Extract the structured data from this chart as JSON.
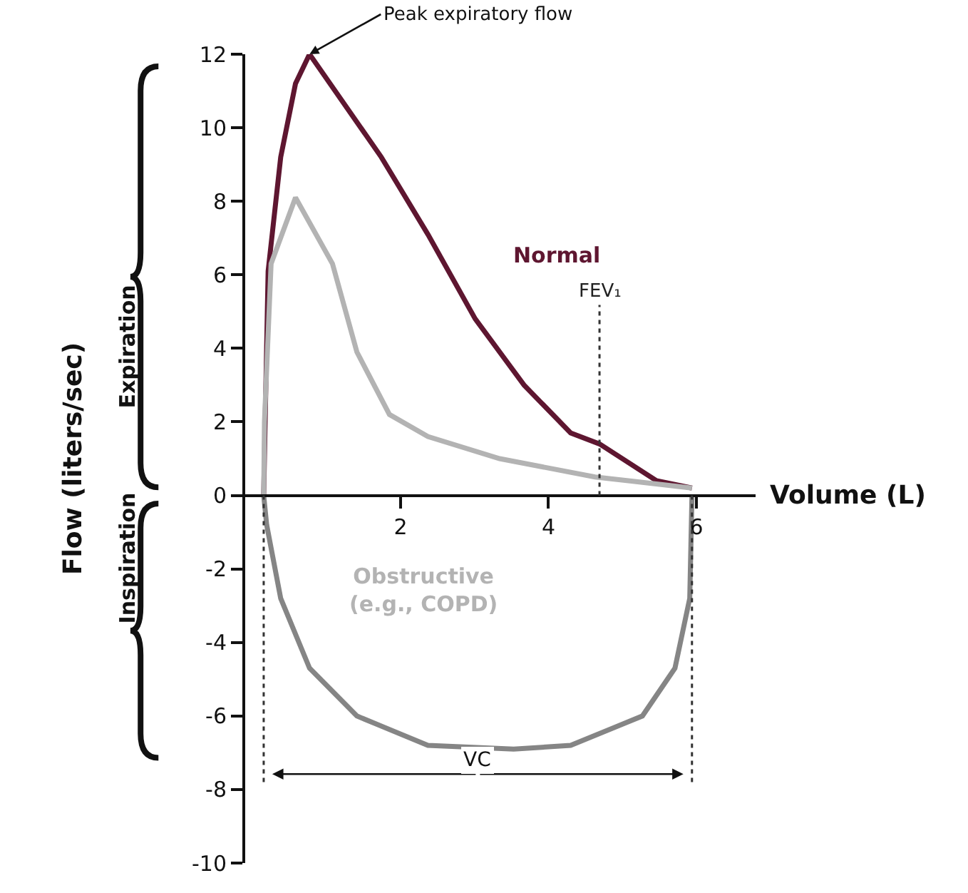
{
  "chart_data": {
    "type": "line",
    "xlim": [
      -0.1,
      6.8
    ],
    "ylim": [
      -10,
      12
    ],
    "xticks": [
      2,
      4,
      6
    ],
    "yticks": [
      -10,
      -8,
      -6,
      -4,
      -2,
      0,
      2,
      4,
      6,
      8,
      10,
      12
    ],
    "xlabel": "Volume (L)",
    "ylabel": "Flow (liters/sec)",
    "legend": false,
    "marker": "none",
    "line_style": "solid",
    "series": [
      {
        "name": "Normal",
        "color": "#5e1630",
        "x": [
          0.15,
          0.21,
          0.38,
          0.58,
          0.77,
          1.74,
          2.37,
          3.01,
          3.67,
          4.3,
          4.69,
          5.46,
          5.94
        ],
        "values": [
          0,
          6.1,
          9.2,
          11.2,
          12,
          9.2,
          7.1,
          4.8,
          3.0,
          1.7,
          1.4,
          0.4,
          0.2
        ]
      },
      {
        "name": "Obstructive (e.g., COPD)",
        "color": "#b3b3b3",
        "x": [
          0.15,
          0.16,
          0.25,
          0.58,
          1.08,
          1.41,
          1.85,
          2.37,
          3.34,
          4.63,
          5.08,
          5.94
        ],
        "values": [
          0,
          2.0,
          6.3,
          8.1,
          6.3,
          3.9,
          2.2,
          1.6,
          1.0,
          0.5,
          0.4,
          0.2
        ]
      },
      {
        "color": "#858585",
        "x": [
          0.15,
          0.19,
          0.38,
          0.77,
          1.41,
          2.37,
          3.53,
          4.3,
          5.27,
          5.71,
          5.91,
          5.94
        ],
        "values": [
          0,
          -0.8,
          -2.8,
          -4.7,
          -6.0,
          -6.8,
          -6.9,
          -6.8,
          -6.0,
          -4.7,
          -2.8,
          0
        ]
      }
    ],
    "ref_lines": [
      {
        "axis": "x",
        "value": 4.69,
        "label": "FEV₁",
        "line_style": "dotted",
        "color": "#333333"
      },
      {
        "axis": "x",
        "value": 0.15,
        "line_style": "dotted",
        "color": "#333333"
      },
      {
        "axis": "x",
        "value": 5.94,
        "line_style": "dotted",
        "color": "#333333"
      }
    ],
    "annotations": [
      {
        "text": "Peak expiratory flow",
        "x": 0.77,
        "y": 12
      },
      "Expiration",
      "Inspiration",
      "VC"
    ]
  }
}
